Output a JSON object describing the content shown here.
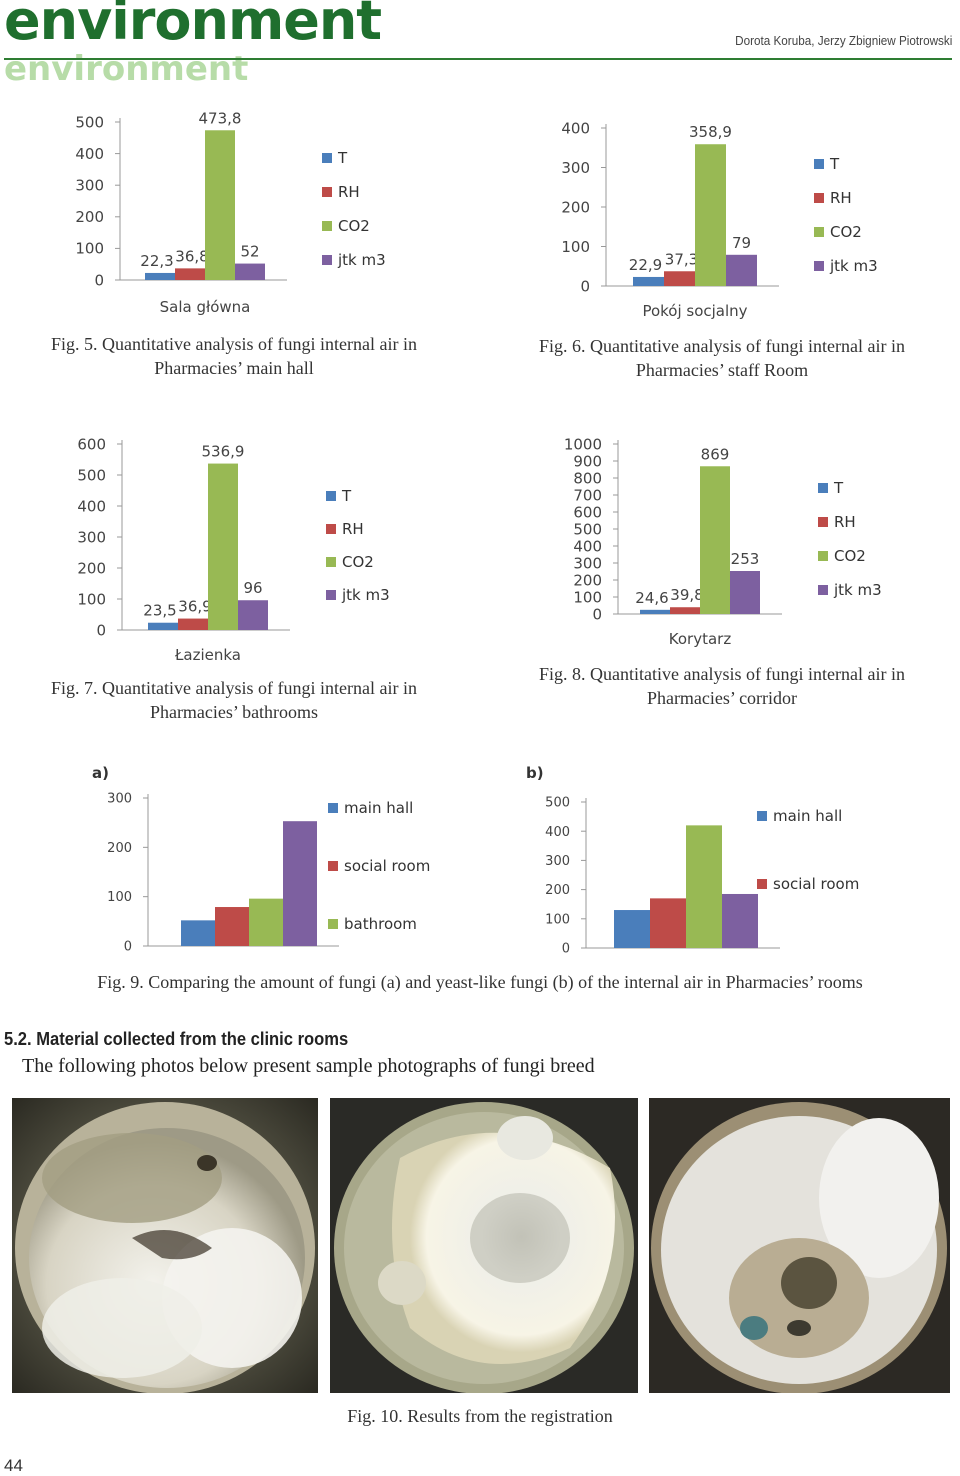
{
  "header": {
    "logo_main": "environment",
    "logo_ghost": "environment",
    "authors": "Dorota Koruba, Jerzy Zbigniew Piotrowski"
  },
  "figures": {
    "fig5": "Fig. 5. Quantitative analysis of fungi internal air in Pharmacies’ main hall",
    "fig6": "Fig. 6. Quantitative analysis of fungi internal air in Pharmacies’ staff Room",
    "fig7": "Fig. 7. Quantitative analysis of fungi internal air in Pharmacies’ bathrooms",
    "fig8": "Fig. 8. Quantitative analysis of fungi internal air in Pharmacies’ corridor",
    "fig9": "Fig. 9. Comparing the amount of fungi (a) and yeast-like fungi (b) of the internal air in Pharmacies’ rooms",
    "fig10": "Fig. 10. Results from the registration"
  },
  "section": {
    "title": "5.2. Material collected from the clinic rooms",
    "text": "The following photos below present sample photographs of fungi breed"
  },
  "page_number": "44",
  "colors": {
    "T": "#4a7ebb",
    "RH": "#be4b48",
    "CO2": "#98b954",
    "jtk": "#7d60a0",
    "brand_green": "#1f6f2e"
  },
  "chart_data": [
    {
      "id": "fig5",
      "type": "bar",
      "categories": [
        "Sala główna"
      ],
      "series": [
        {
          "name": "T",
          "values": [
            22.3
          ],
          "label": "22,3"
        },
        {
          "name": "RH",
          "values": [
            36.8
          ],
          "label": "36,8"
        },
        {
          "name": "CO2",
          "values": [
            473.8
          ],
          "label": "473,8"
        },
        {
          "name": "jtk m3",
          "values": [
            52
          ],
          "label": "52"
        }
      ],
      "yticks": [
        "0",
        "100",
        "200",
        "300",
        "400",
        "500"
      ],
      "ylim": [
        0,
        500
      ],
      "legend": "right"
    },
    {
      "id": "fig6",
      "type": "bar",
      "categories": [
        "Pokój socjalny"
      ],
      "series": [
        {
          "name": "T",
          "values": [
            22.9
          ],
          "label": "22,9"
        },
        {
          "name": "RH",
          "values": [
            37.3
          ],
          "label": "37,3"
        },
        {
          "name": "CO2",
          "values": [
            358.9
          ],
          "label": "358,9"
        },
        {
          "name": "jtk m3",
          "values": [
            79
          ],
          "label": "79"
        }
      ],
      "yticks": [
        "0",
        "100",
        "200",
        "300",
        "400"
      ],
      "ylim": [
        0,
        400
      ],
      "legend": "right"
    },
    {
      "id": "fig7",
      "type": "bar",
      "categories": [
        "Łazienka"
      ],
      "series": [
        {
          "name": "T",
          "values": [
            23.5
          ],
          "label": "23,5"
        },
        {
          "name": "RH",
          "values": [
            36.9
          ],
          "label": "36,9"
        },
        {
          "name": "CO2",
          "values": [
            536.9
          ],
          "label": "536,9"
        },
        {
          "name": "jtk m3",
          "values": [
            96
          ],
          "label": "96"
        }
      ],
      "yticks": [
        "0",
        "100",
        "200",
        "300",
        "400",
        "500",
        "600"
      ],
      "ylim": [
        0,
        600
      ],
      "legend": "right"
    },
    {
      "id": "fig8",
      "type": "bar",
      "categories": [
        "Korytarz"
      ],
      "series": [
        {
          "name": "T",
          "values": [
            24.6
          ],
          "label": "24,6"
        },
        {
          "name": "RH",
          "values": [
            39.8
          ],
          "label": "39,8"
        },
        {
          "name": "CO2",
          "values": [
            869
          ],
          "label": "869"
        },
        {
          "name": "jtk m3",
          "values": [
            253
          ],
          "label": "253"
        }
      ],
      "yticks": [
        "0",
        "100",
        "200",
        "300",
        "400",
        "500",
        "600",
        "700",
        "800",
        "900",
        "1000"
      ],
      "ylim": [
        0,
        1000
      ],
      "legend": "right"
    },
    {
      "id": "fig9a",
      "type": "bar",
      "panel": "a)",
      "categories": [
        ""
      ],
      "series": [
        {
          "name": "main hall",
          "values": [
            52
          ]
        },
        {
          "name": "social room",
          "values": [
            79
          ]
        },
        {
          "name": "bathroom",
          "values": [
            96
          ]
        },
        {
          "name": "",
          "values": [
            253
          ]
        }
      ],
      "yticks": [
        "0",
        "100",
        "200",
        "300"
      ],
      "ylim": [
        0,
        300
      ],
      "legend": "right"
    },
    {
      "id": "fig9b",
      "type": "bar",
      "panel": "b)",
      "categories": [
        ""
      ],
      "series": [
        {
          "name": "main hall",
          "values": [
            130
          ]
        },
        {
          "name": "social room",
          "values": [
            170
          ]
        },
        {
          "name": "",
          "values": [
            420
          ]
        },
        {
          "name": "",
          "values": [
            185
          ]
        }
      ],
      "yticks": [
        "0",
        "100",
        "200",
        "300",
        "400",
        "500"
      ],
      "ylim": [
        0,
        500
      ],
      "legend": "right"
    }
  ]
}
